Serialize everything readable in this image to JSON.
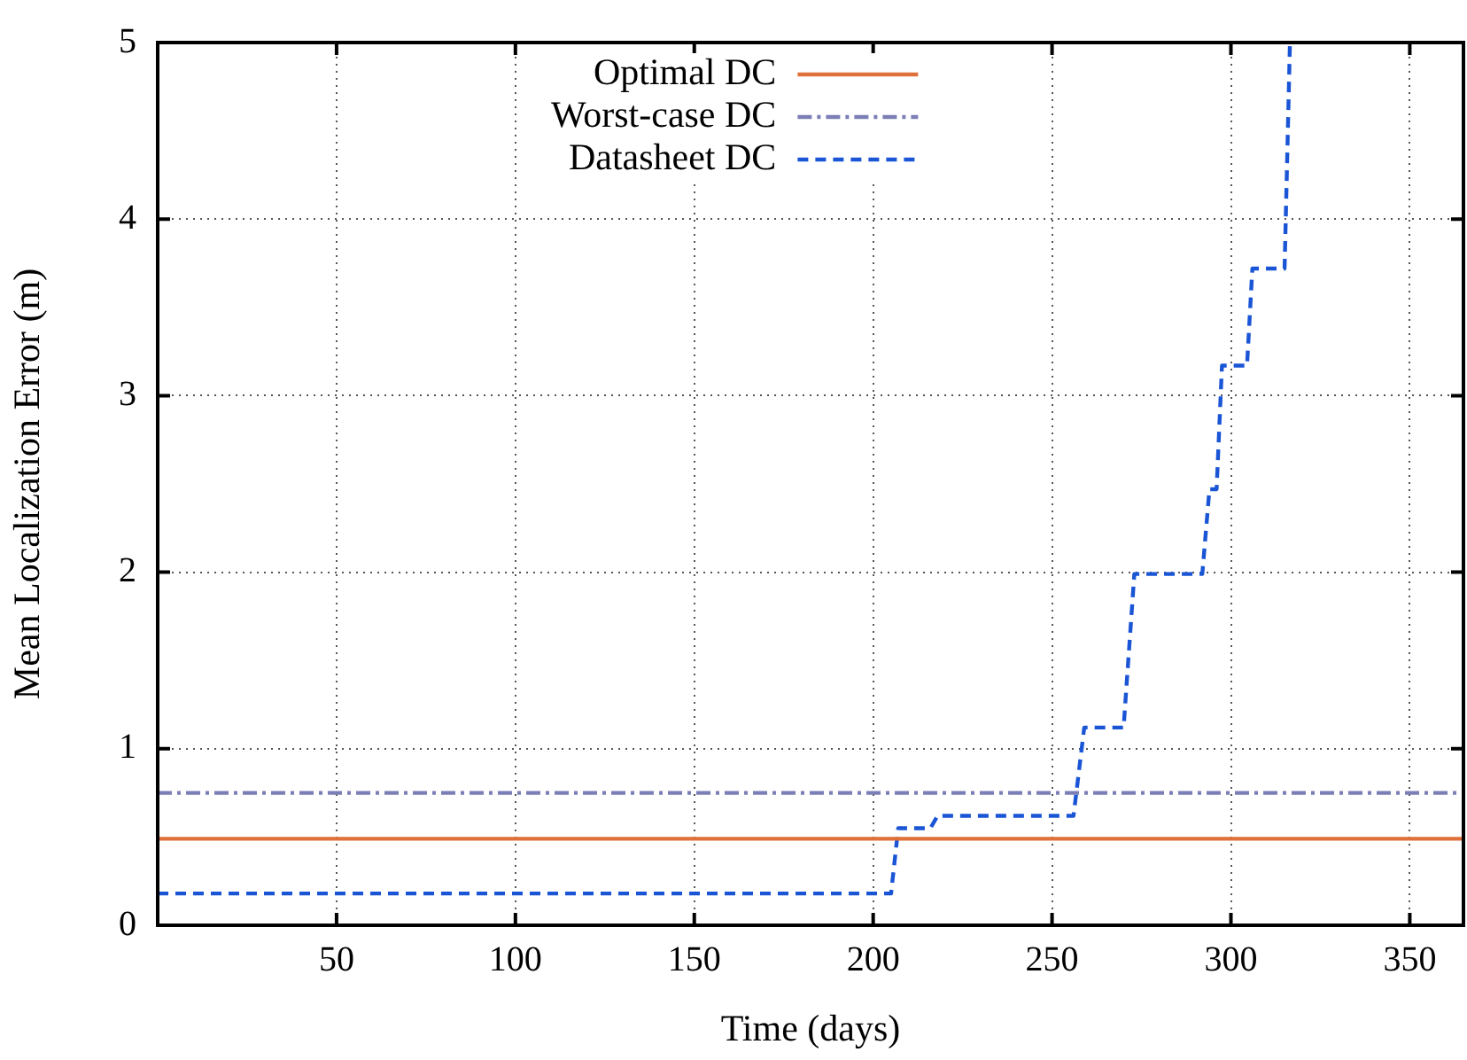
{
  "chart_data": {
    "type": "line",
    "xlabel": "Time (days)",
    "ylabel": "Mean Localization Error (m)",
    "xlim": [
      0,
      365
    ],
    "xticks": [
      50,
      100,
      150,
      200,
      250,
      300,
      350
    ],
    "ylim": [
      0,
      5
    ],
    "yticks": [
      0,
      1,
      2,
      3,
      4,
      5
    ],
    "grid": true,
    "legend": "top left",
    "marker": "none",
    "series": [
      {
        "name": "Optimal DC",
        "color": "#e0703a",
        "line_style": "solid",
        "x": [
          0,
          365
        ],
        "values": [
          0.49,
          0.49
        ]
      },
      {
        "name": "Worst-case DC",
        "color": "#7b7fb5",
        "line_style": "dashdot",
        "x": [
          0,
          365
        ],
        "values": [
          0.75,
          0.75
        ]
      },
      {
        "name": "Datasheet DC",
        "color": "#1a55d6",
        "line_style": "dashed",
        "x": [
          0,
          205,
          207,
          216,
          218,
          256,
          259,
          270,
          273,
          292,
          294,
          296,
          297.5,
          304.5,
          306,
          315,
          316.5
        ],
        "values": [
          0.18,
          0.18,
          0.55,
          0.55,
          0.62,
          0.62,
          1.12,
          1.12,
          1.99,
          1.99,
          2.47,
          2.47,
          3.17,
          3.17,
          3.72,
          3.72,
          5
        ]
      }
    ]
  }
}
